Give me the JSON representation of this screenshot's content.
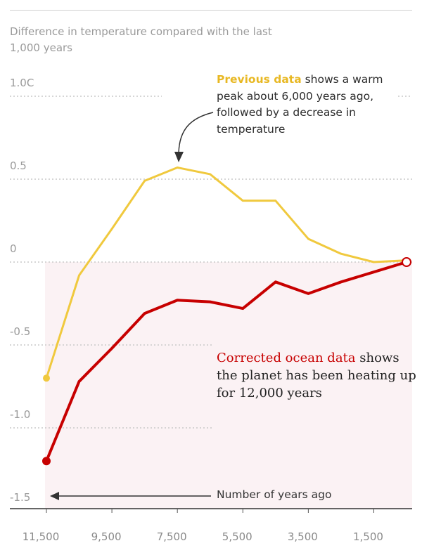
{
  "subtitle": "Difference in temperature compared with the last 1,000 years",
  "annotations": {
    "previous_highlight": "Previous data",
    "previous_rest": " shows a warm peak about 6,000 years ago, followed by a decrease in temperature",
    "corrected_highlight": "Corrected ocean data",
    "corrected_rest": " shows the planet has been heating up for 12,000 years",
    "years_ago": "Number of years ago"
  },
  "colors": {
    "previous": "#f0c93e",
    "corrected": "#c70000",
    "shade": "#fbf2f4",
    "grid": "#c9c9c9"
  },
  "chart_data": {
    "type": "line",
    "x": [
      11500,
      10500,
      9500,
      8500,
      7500,
      6500,
      5500,
      4500,
      3500,
      2500,
      1500,
      500
    ],
    "xlabel": "Number of years ago",
    "ylabel": "Difference in temperature compared with the last 1,000 years",
    "xlim": [
      11600,
      100
    ],
    "ylim": [
      -1.5,
      1.0
    ],
    "x_ticks": [
      {
        "value": 11500,
        "label": "11,500"
      },
      {
        "value": 9500,
        "label": "9,500"
      },
      {
        "value": 7500,
        "label": "7,500"
      },
      {
        "value": 5500,
        "label": "5,500"
      },
      {
        "value": 3500,
        "label": "3,500"
      },
      {
        "value": 1500,
        "label": "1,500"
      }
    ],
    "y_ticks": [
      {
        "value": 1.0,
        "label": "1.0C"
      },
      {
        "value": 0.5,
        "label": "0.5"
      },
      {
        "value": 0,
        "label": "0"
      },
      {
        "value": -0.5,
        "label": "-0.5"
      },
      {
        "value": -1.0,
        "label": "-1.0"
      },
      {
        "value": -1.5,
        "label": "-1.5"
      }
    ],
    "grid": true,
    "series": [
      {
        "name": "Previous data",
        "color": "#f0c93e",
        "values": [
          -0.7,
          -0.08,
          0.2,
          0.49,
          0.57,
          0.53,
          0.37,
          0.37,
          0.14,
          0.05,
          0.0,
          0.01
        ]
      },
      {
        "name": "Corrected ocean data",
        "color": "#c70000",
        "values": [
          -1.2,
          -0.72,
          -0.52,
          -0.31,
          -0.23,
          -0.24,
          -0.28,
          -0.12,
          -0.19,
          -0.12,
          -0.06,
          0.0
        ]
      }
    ]
  }
}
